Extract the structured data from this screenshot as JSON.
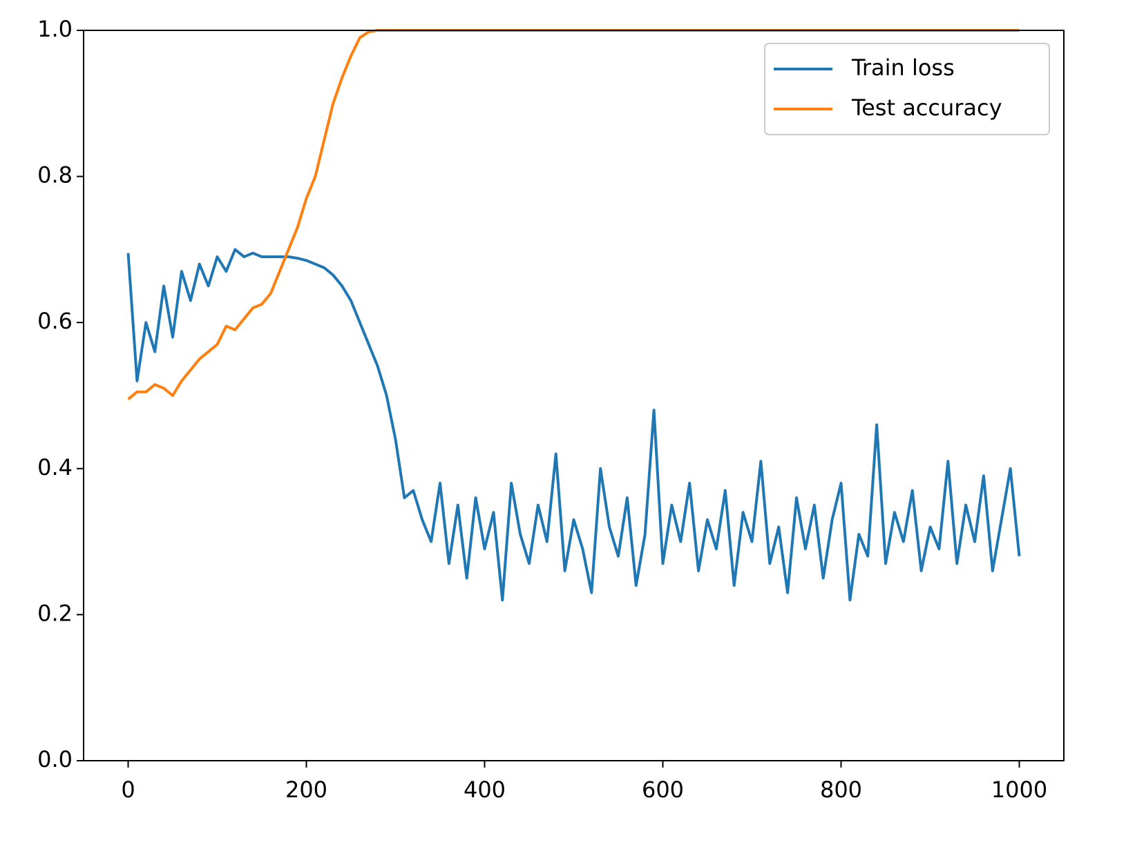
{
  "chart_data": {
    "type": "line",
    "x": [
      0,
      10,
      20,
      30,
      40,
      50,
      60,
      70,
      80,
      90,
      100,
      110,
      120,
      130,
      140,
      150,
      160,
      170,
      180,
      190,
      200,
      210,
      220,
      230,
      240,
      250,
      260,
      270,
      280,
      290,
      300,
      310,
      320,
      330,
      340,
      350,
      360,
      370,
      380,
      390,
      400,
      410,
      420,
      430,
      440,
      450,
      460,
      470,
      480,
      490,
      500,
      510,
      520,
      530,
      540,
      550,
      560,
      570,
      580,
      590,
      600,
      610,
      620,
      630,
      640,
      650,
      660,
      670,
      680,
      690,
      700,
      710,
      720,
      730,
      740,
      750,
      760,
      770,
      780,
      790,
      800,
      810,
      820,
      830,
      840,
      850,
      860,
      870,
      880,
      890,
      900,
      910,
      920,
      930,
      940,
      950,
      960,
      970,
      980,
      990,
      1000
    ],
    "series": [
      {
        "name": "Train loss",
        "color": "#1f77b4",
        "values": [
          0.695,
          0.52,
          0.6,
          0.56,
          0.65,
          0.58,
          0.67,
          0.63,
          0.68,
          0.65,
          0.69,
          0.67,
          0.7,
          0.69,
          0.695,
          0.69,
          0.69,
          0.69,
          0.69,
          0.688,
          0.685,
          0.68,
          0.675,
          0.665,
          0.65,
          0.63,
          0.6,
          0.57,
          0.54,
          0.5,
          0.44,
          0.36,
          0.37,
          0.33,
          0.3,
          0.38,
          0.27,
          0.35,
          0.25,
          0.36,
          0.29,
          0.34,
          0.22,
          0.38,
          0.31,
          0.27,
          0.35,
          0.3,
          0.42,
          0.26,
          0.33,
          0.29,
          0.23,
          0.4,
          0.32,
          0.28,
          0.36,
          0.24,
          0.31,
          0.48,
          0.27,
          0.35,
          0.3,
          0.38,
          0.26,
          0.33,
          0.29,
          0.37,
          0.24,
          0.34,
          0.3,
          0.41,
          0.27,
          0.32,
          0.23,
          0.36,
          0.29,
          0.35,
          0.25,
          0.33,
          0.38,
          0.22,
          0.31,
          0.28,
          0.46,
          0.27,
          0.34,
          0.3,
          0.37,
          0.26,
          0.32,
          0.29,
          0.41,
          0.27,
          0.35,
          0.3,
          0.39,
          0.26,
          0.33,
          0.4,
          0.28
        ]
      },
      {
        "name": "Test accuracy",
        "color": "#ff7f0e",
        "values": [
          0.495,
          0.505,
          0.505,
          0.515,
          0.51,
          0.5,
          0.52,
          0.535,
          0.55,
          0.56,
          0.57,
          0.595,
          0.59,
          0.605,
          0.62,
          0.625,
          0.64,
          0.67,
          0.7,
          0.73,
          0.77,
          0.8,
          0.85,
          0.9,
          0.935,
          0.965,
          0.99,
          0.998,
          1.0,
          1.0,
          1.0,
          1.0,
          1.0,
          1.0,
          1.0,
          1.0,
          1.0,
          1.0,
          1.0,
          1.0,
          1.0,
          1.0,
          1.0,
          1.0,
          1.0,
          1.0,
          1.0,
          1.0,
          1.0,
          1.0,
          1.0,
          1.0,
          1.0,
          1.0,
          1.0,
          1.0,
          1.0,
          1.0,
          1.0,
          1.0,
          1.0,
          1.0,
          1.0,
          1.0,
          1.0,
          1.0,
          1.0,
          1.0,
          1.0,
          1.0,
          1.0,
          1.0,
          1.0,
          1.0,
          1.0,
          1.0,
          1.0,
          1.0,
          1.0,
          1.0,
          1.0,
          1.0,
          1.0,
          1.0,
          1.0,
          1.0,
          1.0,
          1.0,
          1.0,
          1.0,
          1.0,
          1.0,
          1.0,
          1.0,
          1.0,
          1.0,
          1.0,
          1.0,
          1.0,
          1.0,
          1.0
        ]
      }
    ],
    "xlim": [
      -50,
      1050
    ],
    "ylim": [
      0,
      1
    ],
    "xticks": [
      0,
      200,
      400,
      600,
      800,
      1000
    ],
    "yticks": [
      {
        "value": 0,
        "label": "0.0"
      },
      0.2,
      0.4,
      0.6,
      0.8,
      {
        "value": 1,
        "label": "1.0"
      }
    ],
    "legend": "upper right"
  }
}
